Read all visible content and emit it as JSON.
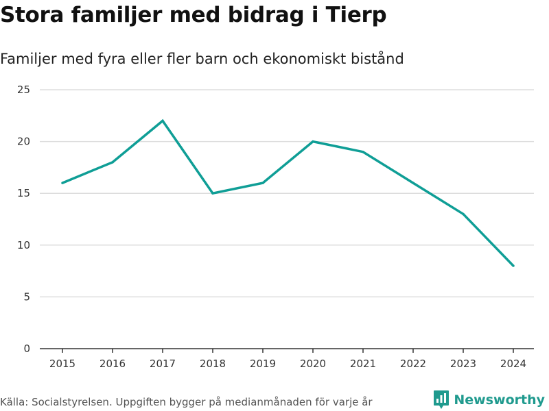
{
  "header": {
    "title": "Stora familjer med bidrag i Tierp",
    "subtitle": "Familjer med fyra eller fler barn och ekonomiskt bistånd"
  },
  "chart_data": {
    "type": "line",
    "title": "Stora familjer med bidrag i Tierp",
    "subtitle": "Familjer med fyra eller fler barn och ekonomiskt bistånd",
    "xlabel": "",
    "ylabel": "",
    "x": [
      "2015",
      "2016",
      "2017",
      "2018",
      "2019",
      "2020",
      "2021",
      "2022",
      "2023",
      "2024"
    ],
    "series": [
      {
        "name": "Familjer med fyra eller fler barn och ekonomiskt bistånd",
        "values": [
          16,
          18,
          22,
          15,
          16,
          20,
          19,
          16,
          13,
          8
        ]
      }
    ],
    "ylim": [
      0,
      25
    ],
    "yticks": [
      "0",
      "5",
      "10",
      "15",
      "20",
      "25"
    ],
    "grid": true,
    "line_color": "#0f9e96",
    "grid_color": "#dddddd",
    "axis_color": "#333333"
  },
  "footer": {
    "source": "Källa: Socialstyrelsen. Uppgiften bygger på medianmånaden för varje år",
    "brand_name": "Newsworthy",
    "brand_icon": "newsworthy-logo-icon",
    "brand_color": "#1f9a8e"
  }
}
